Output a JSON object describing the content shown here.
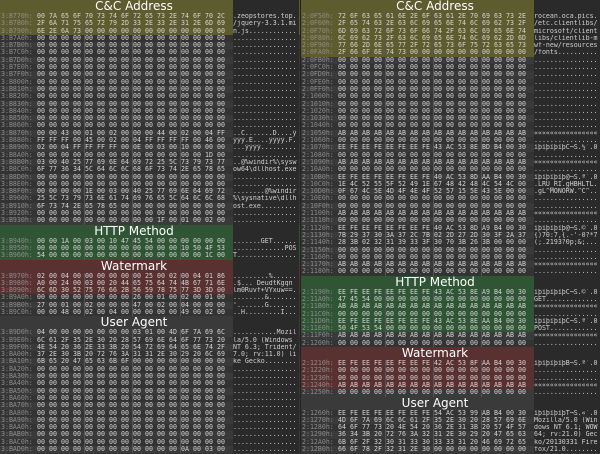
{
  "colors": {
    "cnc": "#5d5c2e",
    "http": "#2f5535",
    "watermark": "#5a3131"
  },
  "left": {
    "labels": {
      "cnc": "C&C Address",
      "http": "HTTP Method",
      "watermark": "Watermark",
      "ua": "User Agent"
    },
    "rows": [
      {
        "addr": "3:B770h:",
        "hex": "00 7A 65 6F 70 73 74 6F 72 65 73 2E 74 6F 70 2C",
        "ascii": ".zeopstores.top.",
        "hl": "cnc"
      },
      {
        "addr": "3:B780h:",
        "hex": "2F 6A 71 75 65 72 79 2D 33 2E 33 2E 31 2E 6D 69",
        "ascii": "/jquery-3.3.1.mi",
        "hl": "cnc"
      },
      {
        "addr": "3:B790h:",
        "hex": "6E 2E 6A 73 00 00 00 00 00 00 00 00 00 00 00 00",
        "ascii": "n.js............",
        "hl": "cnc"
      },
      {
        "addr": "3:B7A0h:",
        "hex": "00 00 00 00 00 00 00 00 00 00 00 00 00 00 00 00",
        "ascii": "................"
      },
      {
        "addr": "3:B7B0h:",
        "hex": "00 00 00 00 00 00 00 00 00 00 00 00 00 00 00 00",
        "ascii": "................"
      },
      {
        "addr": "3:B7C0h:",
        "hex": "00 00 00 00 00 00 00 00 00 00 00 00 00 00 00 00",
        "ascii": "................"
      },
      {
        "addr": "3:B7D0h:",
        "hex": "00 00 00 00 00 00 00 00 00 00 00 00 00 00 00 00",
        "ascii": "................"
      },
      {
        "addr": "3:B7E0h:",
        "hex": "00 00 00 00 00 00 00 00 00 00 00 00 00 00 00 00",
        "ascii": "................"
      },
      {
        "addr": "3:B7F0h:",
        "hex": "00 00 00 00 00 00 00 00 00 00 00 00 00 00 00 00",
        "ascii": "................"
      },
      {
        "addr": "3:B800h:",
        "hex": "00 00 00 00 00 00 00 00 00 00 00 00 00 00 00 00",
        "ascii": "................"
      },
      {
        "addr": "3:B810h:",
        "hex": "00 00 00 00 00 00 00 00 00 00 00 00 00 00 00 00",
        "ascii": "................"
      },
      {
        "addr": "3:B820h:",
        "hex": "00 00 00 00 00 00 00 00 00 00 00 00 00 00 00 00",
        "ascii": "................"
      },
      {
        "addr": "3:B830h:",
        "hex": "00 00 00 00 00 00 00 00 00 00 00 00 00 00 00 00",
        "ascii": "................"
      },
      {
        "addr": "3:B840h:",
        "hex": "00 00 00 00 00 00 00 00 00 00 00 00 00 00 00 00",
        "ascii": "................"
      },
      {
        "addr": "3:B850h:",
        "hex": "00 00 00 00 00 00 00 00 00 00 00 00 00 00 00 00",
        "ascii": "................"
      },
      {
        "addr": "3:B860h:",
        "hex": "00 00 00 00 00 00 00 00 00 00 00 00 00 00 00 00",
        "ascii": "................"
      },
      {
        "addr": "3:B870h:",
        "hex": "00 00 43 00 01 00 02 00 00 00 44 00 02 00 04 FF",
        "ascii": "..C.......D....ÿ"
      },
      {
        "addr": "3:B880h:",
        "hex": "FF FF FF 00 45 00 02 00 04 FF FF FF FF 00 46 00",
        "ascii": "ÿÿÿ.E....ÿÿÿÿ.F."
      },
      {
        "addr": "3:B890h:",
        "hex": "02 00 04 FF FF FF FF 00 0E 00 03 00 10 00 00 00",
        "ascii": "...ÿÿÿÿ........."
      },
      {
        "addr": "3:B8A0h:",
        "hex": "00 00 00 00 00 00 00 00 00 00 00 00 00 00 1D 00",
        "ascii": "................"
      },
      {
        "addr": "3:B8B0h:",
        "hex": "03 00 40 25 77 69 6E 64 69 72 25 5C 73 79 73 77",
        "ascii": "..@%windir%\\sysw"
      },
      {
        "addr": "3:B8C0h:",
        "hex": "6F 77 36 34 5C 64 6C 6C 68 6F 73 74 2E 65 78 65",
        "ascii": "ow64\\dllhost.exe"
      },
      {
        "addr": "3:B8D0h:",
        "hex": "00 00 00 00 00 00 00 00 00 00 00 00 00 00 00 00",
        "ascii": "................"
      },
      {
        "addr": "3:B8E0h:",
        "hex": "00 00 00 00 00 00 00 00 00 00 00 00 00 00 00 00",
        "ascii": "................"
      },
      {
        "addr": "3:B8F0h:",
        "hex": "00 00 00 00 1E 00 03 00 40 25 77 69 6E 64 69 72",
        "ascii": "........@%windir"
      },
      {
        "addr": "3:B900h:",
        "hex": "25 5C 73 79 73 6E 61 74 69 76 65 5C 64 6C 6C 68",
        "ascii": "%\\sysnative\\dllh"
      },
      {
        "addr": "3:B910h:",
        "hex": "6F 73 74 2E 65 78 65 00 00 00 00 00 00 00 00 00",
        "ascii": "ost.exe........."
      },
      {
        "addr": "3:B920h:",
        "hex": "00 00 00 00 00 00 00 00 00 00 00 00 00 00 00 00",
        "ascii": "................"
      },
      {
        "addr": "3:B930h:",
        "hex": "00 00 00 00 00 00 00 00 00 00 1F 00 01 00 02 00",
        "ascii": "................"
      },
      {
        "addr": "3:B940h:",
        "hex": "00 00 1A 00 03 00 10 47 45 54 00 00 00 00 00 00",
        "ascii": ".......GET......",
        "hl": "http"
      },
      {
        "addr": "3:B950h:",
        "hex": "00 00 00 00 00 00 00 00 00 00 00 00 10 50 4F 53",
        "ascii": ".............POS",
        "hl": "http"
      },
      {
        "addr": "3:B960h:",
        "hex": "54 00 00 00 00 00 00 00 00 00 00 00 00 00 1C 00",
        "ascii": "T...............",
        "hl": "http"
      },
      {
        "addr": "3:B970h:",
        "hex": "02 00 04 00 00 00 00 00 00 25 00 02 00 04 01 86",
        "ascii": ".........%......",
        "hl": "watermark"
      },
      {
        "addr": "3:B980h:",
        "hex": "A0 00 24 00 03 00 20 44 65 75 64 74 4B 67 71 6E",
        "ascii": ".$... DeudtKgqn",
        "hl": "watermark"
      },
      {
        "addr": "3:B990h:",
        "hex": "6C 6D 30 52 75 76 66 2B 56 59 78 75 77 3D 3D 00",
        "ascii": "lm0Ruvf+VYxuw==.",
        "hl": "watermark"
      },
      {
        "addr": "3:B9A0h:",
        "hex": "00 00 00 00 00 00 00 00 26 00 01 00 02 00 01 00",
        "ascii": "........&......."
      },
      {
        "addr": "3:B9B0h:",
        "hex": "27 00 01 00 02 00 00 00 47 00 02 00 04 00 00 00",
        "ascii": "'.......G......."
      },
      {
        "addr": "3:B9C0h:",
        "hex": "00 00 48 00 02 00 04 00 00 00 00 00 49 00 02 00",
        "ascii": "..H.........I..."
      },
      {
        "addr": "3:B9D0h:",
        "hex": "04 00 00 00 00 00 00 00 03 01 00 4D 6F 7A 69 6C",
        "ascii": "...........Mozil"
      },
      {
        "addr": "3:B9E0h:",
        "hex": "6C 61 2F 35 2E 30 20 28 57 69 6E 64 6F 77 73 20",
        "ascii": "la/5.0 (Windows "
      },
      {
        "addr": "3:B9F0h:",
        "hex": "4E 54 20 36 2E 33 3B 20 54 72 69 64 65 6E 74 2F",
        "ascii": "NT 6.3; Trident/"
      },
      {
        "addr": "3:BA00h:",
        "hex": "37 2E 30 3B 20 72 76 3A 31 31 2E 30 29 20 6C 69",
        "ascii": "7.0; rv:11.0) li"
      },
      {
        "addr": "3:BA10h:",
        "hex": "6B 65 20 47 65 63 6B 6F 00 00 00 00 00 00 00 00",
        "ascii": "ke Gecko........"
      },
      {
        "addr": "3:BA20h:",
        "hex": "00 00 00 00 00 00 00 00 00 00 00 00 00 00 00 00",
        "ascii": "................"
      },
      {
        "addr": "3:BA30h:",
        "hex": "00 00 00 00 00 00 00 00 00 00 00 00 00 00 00 00",
        "ascii": "................"
      },
      {
        "addr": "3:BA40h:",
        "hex": "00 00 00 00 00 00 00 00 00 00 00 00 00 00 00 00",
        "ascii": "................"
      },
      {
        "addr": "3:BA50h:",
        "hex": "00 00 00 00 00 00 00 00 00 00 00 00 00 00 00 00",
        "ascii": "................"
      },
      {
        "addr": "3:BA60h:",
        "hex": "00 00 00 00 00 00 00 00 00 00 00 00 00 00 00 00",
        "ascii": "................"
      },
      {
        "addr": "3:BA70h:",
        "hex": "00 00 00 00 00 00 00 00 00 00 00 00 00 00 00 00",
        "ascii": "................"
      },
      {
        "addr": "3:BA80h:",
        "hex": "00 00 00 00 00 00 00 00 00 00 00 00 00 00 00 00",
        "ascii": "................"
      },
      {
        "addr": "3:BA90h:",
        "hex": "00 00 00 00 00 00 00 00 00 00 00 00 00 00 00 00",
        "ascii": "................"
      },
      {
        "addr": "3:BAA0h:",
        "hex": "00 00 00 00 00 00 00 00 00 00 00 00 00 00 00 00",
        "ascii": "................"
      },
      {
        "addr": "3:BAB0h:",
        "hex": "00 00 00 00 00 00 00 00 00 00 00 00 00 00 00 00",
        "ascii": "................"
      },
      {
        "addr": "3:BAC0h:",
        "hex": "00 00 00 00 00 00 00 00 00 00 00 00 00 00 00 00",
        "ascii": "................"
      },
      {
        "addr": "3:BAD0h:",
        "hex": "00 00 00 00 00 00 00 00 00 00 00 00 0A 00 03 00",
        "ascii": "................"
      }
    ]
  },
  "right": {
    "labels": {
      "cnc": "C&C Address",
      "http": "HTTP Method",
      "watermark": "Watermark",
      "ua": "User Agent"
    },
    "rows": [
      {
        "addr": "2:0F50h:",
        "hex": "72 6F 63 65 61 6E 2E 6F 63 61 2E 70 69 63 73 2E",
        "ascii": "rocean.oca.pics.",
        "hl": "cnc"
      },
      {
        "addr": "2:0F60h:",
        "hex": "2F 65 74 63 2E 63 6C 69 65 6E 74 6C 69 62 73 2F",
        "ascii": "/etc.clientlibs/",
        "hl": "cnc"
      },
      {
        "addr": "2:0F70h:",
        "hex": "6D 69 63 72 6F 73 6F 66 74 2F 63 6C 69 65 6E 74",
        "ascii": "microsoft/client",
        "hl": "cnc"
      },
      {
        "addr": "2:0F80h:",
        "hex": "6C 69 62 73 2F 63 6C 69 65 6E 74 6C 69 62 2D 6D",
        "ascii": "libs/clientlib-m",
        "hl": "cnc"
      },
      {
        "addr": "2:0F90h:",
        "hex": "77 66 2D 6E 65 77 2F 72 65 73 6F 75 72 63 65 73",
        "ascii": "wf-new/resources",
        "hl": "cnc"
      },
      {
        "addr": "2:0FA0h:",
        "hex": "2F 66 6F 6E 74 73 00 00 00 00 00 00 00 00 00 00",
        "ascii": "/fonts..........",
        "hl": "cnc"
      },
      {
        "addr": "2:0FB0h:",
        "hex": "00 00 00 00 00 00 00 00 00 00 00 00 00 00 00 00",
        "ascii": "................"
      },
      {
        "addr": "2:0FC0h:",
        "hex": "00 00 00 00 00 00 00 00 00 00 00 00 00 00 00 00",
        "ascii": "................"
      },
      {
        "addr": "2:0FD0h:",
        "hex": "00 00 00 00 00 00 00 00 00 00 00 00 00 00 00 00",
        "ascii": "................"
      },
      {
        "addr": "2:0FE0h:",
        "hex": "00 00 00 00 00 00 00 00 00 00 00 00 00 00 00 00",
        "ascii": "................"
      },
      {
        "addr": "2:0FF0h:",
        "hex": "00 00 00 00 00 00 00 00 00 00 00 00 00 00 00 00",
        "ascii": "................"
      },
      {
        "addr": "2:1000h:",
        "hex": "00 00 00 00 00 00 00 00 00 00 00 00 00 00 00 00",
        "ascii": "................"
      },
      {
        "addr": "2:1010h:",
        "hex": "00 00 00 00 00 00 00 00 00 00 00 00 00 00 00 00",
        "ascii": "................"
      },
      {
        "addr": "2:1020h:",
        "hex": "00 00 00 00 00 00 00 00 00 00 00 00 00 00 00 00",
        "ascii": "................"
      },
      {
        "addr": "2:1030h:",
        "hex": "00 00 00 00 00 00 00 00 00 00 00 00 00 00 00 00",
        "ascii": "................"
      },
      {
        "addr": "2:1040h:",
        "hex": "00 00 00 00 00 00 00 00 00 00 00 00 00 00 00 00",
        "ascii": "................"
      },
      {
        "addr": "2:1050h:",
        "hex": "AB AB AB AB AB AB AB AB AB AB AB AB AB AB AB AB",
        "ascii": "««««««««««««««««"
      },
      {
        "addr": "2:1060h:",
        "hex": "00 00 00 00 00 00 00 00 00 00 00 00 00 00 00 00",
        "ascii": "................"
      },
      {
        "addr": "2:1070h:",
        "hex": "EE FE EE FE EE FE EE FE 43 AC 53 8E BD B4 00 30",
        "ascii": "îþîþîþîþC¬S.½´.0"
      },
      {
        "addr": "2:1080h:",
        "hex": "00 00 00 00 00 00 00 00 00 00 00 00 00 00 00 00",
        "ascii": "................"
      },
      {
        "addr": "2:1090h:",
        "hex": "AB AB AB AB AB AB AB AB AB AB AB AB AB AB AB AB",
        "ascii": "««««««««««««««««"
      },
      {
        "addr": "2:10A0h:",
        "hex": "00 00 00 00 00 00 00 00 00 00 00 00 00 00 00 00",
        "ascii": "................"
      },
      {
        "addr": "2:10B0h:",
        "hex": "EE FE EE FE EE FE EE FE 40 AC 53 8D AA B4 00 30",
        "ascii": "îþîþîþîþ@¬S.ª´.0"
      },
      {
        "addr": "2:10C0h:",
        "hex": "1E 4C 52 55 5F 52 49 1E 67 48 42 48 4C 54 4C 00",
        "ascii": ".LRU_RI.gHBHLTL."
      },
      {
        "addr": "2:10D0h:",
        "hex": "0F 67 4C 5E 4D 4F 4E 4F 52 57 15 5E 43 5E 00 00",
        "ascii": ".gL^MONORW.^C^.."
      },
      {
        "addr": "2:10E0h:",
        "hex": "00 00 00 00 00 00 00 00 00 00 00 00 00 00 00 00",
        "ascii": "................"
      },
      {
        "addr": "2:10F0h:",
        "hex": "00 00 00 00 00 00 00 00 00 00 00 00 00 00 00 00",
        "ascii": "................"
      },
      {
        "addr": "2:1100h:",
        "hex": "AB AB AB AB AB AB AB AB AB AB AB AB AB AB AB AB",
        "ascii": "««««««««««««««««"
      },
      {
        "addr": "2:1110h:",
        "hex": "00 00 00 00 00 00 00 00 00 00 00 00 00 00 00 00",
        "ascii": "................"
      },
      {
        "addr": "2:1120h:",
        "hex": "EE FE EE FE EE FE EE FE 40 AC 53 8D A9 B4 00 30",
        "ascii": "îþîþîþîþ@¬S.©´.0"
      },
      {
        "addr": "2:1130h:",
        "hex": "7B 29 37 30 3A 37 2C 7B 02 2D 27 2D 30 3F 2A 37",
        "ascii": "{)70:7,{.-'-0?*7"
      },
      {
        "addr": "2:1140h:",
        "hex": "28 3B 02 32 31 39 33 3F 30 70 3B 26 3B 00 00 00",
        "ascii": "(;.2193?0p;&;..."
      },
      {
        "addr": "2:1150h:",
        "hex": "00 00 00 00 00 00 00 00 00 00 00 00 00 00 00 00",
        "ascii": "................"
      },
      {
        "addr": "2:1160h:",
        "hex": "00 00 00 00 00 00 00 00 00 00 00 00 00 00 00 00",
        "ascii": "................"
      },
      {
        "addr": "2:1170h:",
        "hex": "AB AB AB AB AB AB AB AB AB AB AB AB AB AB AB AB",
        "ascii": "««««««««««««««««"
      },
      {
        "addr": "2:1180h:",
        "hex": "00 00 00 00 00 00 00 00 00 00 00 00 00 00 00 00",
        "ascii": "................"
      },
      {
        "addr": "2:1190h:",
        "hex": "EE FE EE FE EE FE EE FE 43 AC 53 8E A9 B4 00 30",
        "ascii": "îþîþîþîþC¬S.©´.0",
        "hl": "http"
      },
      {
        "addr": "2:11A0h:",
        "hex": "47 45 54 00 00 00 00 00 00 00 00 00 00 00 00 00",
        "ascii": "GET.............",
        "hl": "http"
      },
      {
        "addr": "2:11B0h:",
        "hex": "AB AB AB AB AB AB AB AB AB AB AB AB AB AB AB AB",
        "ascii": "««««««««««««««««",
        "hl": "http"
      },
      {
        "addr": "2:11C0h:",
        "hex": "00 00 00 00 00 00 00 00 00 00 00 00 00 00 00 00",
        "ascii": "................",
        "hl": "http"
      },
      {
        "addr": "2:11D0h:",
        "hex": "EE FE EE FE EE FE EE FE 43 AC 53 8E AA B4 00 30",
        "ascii": "îþîþîþîþC¬S.ª´.0",
        "hl": "http"
      },
      {
        "addr": "2:11E0h:",
        "hex": "50 4F 53 54 00 00 00 00 00 00 00 00 00 00 00 00",
        "ascii": "POST............",
        "hl": "http"
      },
      {
        "addr": "2:11F0h:",
        "hex": "AB AB AB AB AB AB AB AB AB AB AB AB AB AB AB AB",
        "ascii": "««««««««««««««««"
      },
      {
        "addr": "2:1200h:",
        "hex": "00 00 00 00 00 00 00 00 00 00 00 00 00 00 00 00",
        "ascii": "................"
      },
      {
        "addr": "2:1210h:",
        "hex": "EE FE EE FE EE FE EE FE 42 AC 53 8F AA B4 00 30",
        "ascii": "îþîþîþîþB¬S.ª´.0",
        "hl": "watermark"
      },
      {
        "addr": "2:1220h:",
        "hex": "00 00 00 00 00 00 00 00 00 00 00 00 00 00 00 00",
        "ascii": "................",
        "hl": "watermark"
      },
      {
        "addr": "2:1230h:",
        "hex": "00 00 00 00 00 00 00 00 00 00 00 00 00 00 00 00",
        "ascii": "................",
        "hl": "watermark"
      },
      {
        "addr": "2:1240h:",
        "hex": "AB AB AB AB AB AB AB AB AB AB AB AB AB AB AB AB",
        "ascii": "««««««««««««««««",
        "hl": "watermark"
      },
      {
        "addr": "2:1250h:",
        "hex": "00 00 00 00 00 00 00 00 00 00 00 00 00 00 00 00",
        "ascii": "................"
      },
      {
        "addr": "2:1260h:",
        "hex": "EE FE EE FE EE FE EE FE 54 AC 53 99 AB B4 00 30",
        "ascii": "îþîþîþîþT¬S.«´.0"
      },
      {
        "addr": "2:1270h:",
        "hex": "4D 6F 7A 69 6C 6C 61 2F 35 2E 30 20 28 57 69 6E",
        "ascii": "Mozilla/5.0 (Win"
      },
      {
        "addr": "2:1280h:",
        "hex": "64 6F 77 73 20 4E 54 20 36 2E 31 3B 20 57 4F 57",
        "ascii": "dows NT 6.1; WOW"
      },
      {
        "addr": "2:1290h:",
        "hex": "36 34 3B 20 72 76 3A 32 31 2E 30 29 20 47 65 63",
        "ascii": "64; rv:21.0) Gec"
      },
      {
        "addr": "2:12A0h:",
        "hex": "6B 6F 2F 32 30 31 33 30 33 33 31 20 46 69 72 65",
        "ascii": "ko/20130331 Fire"
      },
      {
        "addr": "2:12B0h:",
        "hex": "66 6F 78 2F 32 31 2E 30 00 00 00 00 00 00 00 00",
        "ascii": "fox/21.0........"
      }
    ]
  }
}
